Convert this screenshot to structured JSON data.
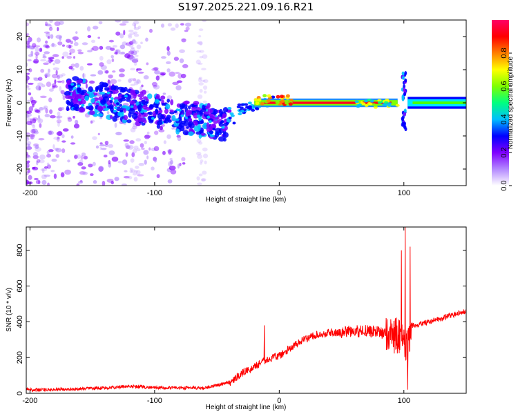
{
  "chart_data": [
    {
      "type": "heatmap",
      "title": "S197.2025.221.09.16.R21",
      "xlabel": "Height of straight line (km)",
      "ylabel": "Frequency (Hz)",
      "xlim": [
        -203,
        150
      ],
      "ylim": [
        -25,
        25
      ],
      "xticks": [
        -200,
        -100,
        0,
        100
      ],
      "yticks": [
        -20,
        -10,
        0,
        10,
        20
      ],
      "colorbar": {
        "label": "Normalized spectral amplitude",
        "range": [
          0,
          1
        ],
        "ticks": [
          "0.0",
          "0.2",
          "0.4",
          "0.6",
          "0.8"
        ],
        "tick_values": [
          0.0,
          0.2,
          0.4,
          0.6,
          0.8
        ],
        "colormap": [
          "#ffffff",
          "#b388ff",
          "#7f00ff",
          "#0000ff",
          "#00bfff",
          "#00ff7f",
          "#7fff00",
          "#ffff00",
          "#ff7f00",
          "#ff0000",
          "#ff0066"
        ]
      },
      "features": [
        {
          "name": "diffuse scatter",
          "x_range": [
            -203,
            -90
          ],
          "y_range": [
            -25,
            25
          ]
        },
        {
          "name": "descending noisy band",
          "from": [
            -170,
            3
          ],
          "to": [
            -40,
            -7
          ]
        },
        {
          "name": "carrier line",
          "x_range": [
            -20,
            95
          ],
          "frequency": 0,
          "amplitude": 0.95
        },
        {
          "name": "spike",
          "x": 100,
          "y_range": [
            -8,
            9
          ]
        },
        {
          "name": "tail",
          "x_range": [
            103,
            150
          ],
          "frequency": 0,
          "amplitude": 0.45
        }
      ]
    },
    {
      "type": "line",
      "xlabel": "Height of straight line (km)",
      "ylabel": "SNR (10 * v/v)",
      "xlim": [
        -203,
        150
      ],
      "ylim": [
        0,
        930
      ],
      "xticks": [
        -200,
        -100,
        0,
        100
      ],
      "yticks": [
        0,
        200,
        400,
        600,
        800
      ],
      "color": "#ff0000",
      "series": [
        {
          "name": "SNR",
          "x": [
            -203,
            -180,
            -160,
            -140,
            -120,
            -100,
            -80,
            -60,
            -50,
            -40,
            -30,
            -20,
            -10,
            0,
            10,
            20,
            30,
            40,
            50,
            60,
            70,
            80,
            90,
            95,
            100,
            103,
            106,
            110,
            120,
            130,
            140,
            150
          ],
          "y": [
            20,
            20,
            25,
            30,
            40,
            30,
            30,
            30,
            45,
            60,
            110,
            150,
            190,
            210,
            260,
            300,
            330,
            340,
            340,
            345,
            350,
            340,
            330,
            320,
            300,
            250,
            380,
            380,
            400,
            420,
            440,
            460
          ]
        }
      ],
      "spikes": [
        {
          "x": -12,
          "y": 380
        },
        {
          "x": 98,
          "y": 800
        },
        {
          "x": 101,
          "y": 930
        },
        {
          "x": 103,
          "y": 20
        },
        {
          "x": 105,
          "y": 820
        }
      ]
    }
  ]
}
